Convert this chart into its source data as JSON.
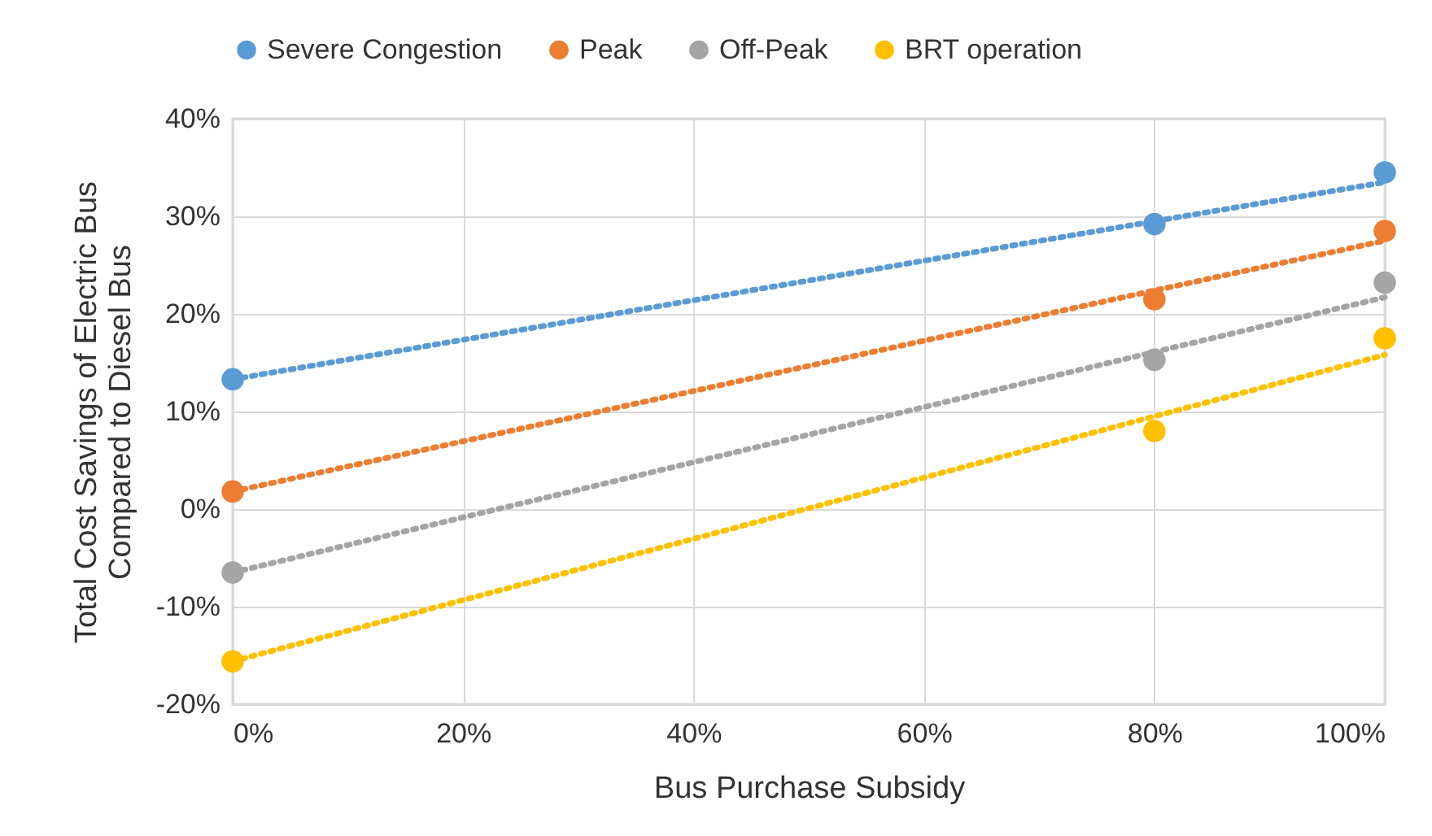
{
  "chart_data": {
    "type": "scatter",
    "xlabel": "Bus Purchase Subsidy",
    "ylabel": "Total Cost Savings of Electric Bus\nCompared to Diesel Bus",
    "x": [
      0,
      80,
      100
    ],
    "series": [
      {
        "name": "Severe Congestion",
        "color": "#5b9bd5",
        "marker": "circle",
        "values": [
          13.3,
          29.2,
          34.5
        ]
      },
      {
        "name": "Peak",
        "color": "#ed7d31",
        "marker": "circle",
        "values": [
          1.8,
          21.5,
          28.5
        ]
      },
      {
        "name": "Off-Peak",
        "color": "#a5a5a5",
        "marker": "circle",
        "values": [
          -6.5,
          15.3,
          23.2
        ]
      },
      {
        "name": "BRT operation",
        "color": "#ffc000",
        "marker": "circle",
        "values": [
          -15.6,
          8.0,
          17.5
        ]
      },
      {
        "type": "line",
        "color": "#5b9bd5",
        "line_style": "dotted",
        "marker": "none",
        "values": [
          13.3,
          29.5,
          33.5
        ]
      },
      {
        "type": "line",
        "color": "#ed7d31",
        "line_style": "dotted",
        "marker": "none",
        "values": [
          1.8,
          22.4,
          27.5
        ]
      },
      {
        "type": "line",
        "color": "#a5a5a5",
        "line_style": "dotted",
        "marker": "none",
        "values": [
          -6.5,
          16.1,
          21.7
        ]
      },
      {
        "type": "line",
        "color": "#ffc000",
        "line_style": "dotted",
        "marker": "none",
        "values": [
          -15.6,
          9.5,
          15.8
        ]
      }
    ],
    "xlim": [
      0,
      100
    ],
    "xticks": [
      {
        "value": 0,
        "label": "0%"
      },
      {
        "value": 20,
        "label": "20%"
      },
      {
        "value": 40,
        "label": "40%"
      },
      {
        "value": 60,
        "label": "60%"
      },
      {
        "value": 80,
        "label": "80%"
      },
      {
        "value": 100,
        "label": "100%"
      }
    ],
    "ylim": [
      -20,
      40
    ],
    "yticks": [
      {
        "value": -20,
        "label": "-20%"
      },
      {
        "value": -10,
        "label": "-10%"
      },
      {
        "value": 0,
        "label": "0%"
      },
      {
        "value": 10,
        "label": "10%"
      },
      {
        "value": 20,
        "label": "20%"
      },
      {
        "value": 30,
        "label": "30%"
      },
      {
        "value": 40,
        "label": "40%"
      }
    ],
    "grid": true,
    "legend": "top"
  }
}
